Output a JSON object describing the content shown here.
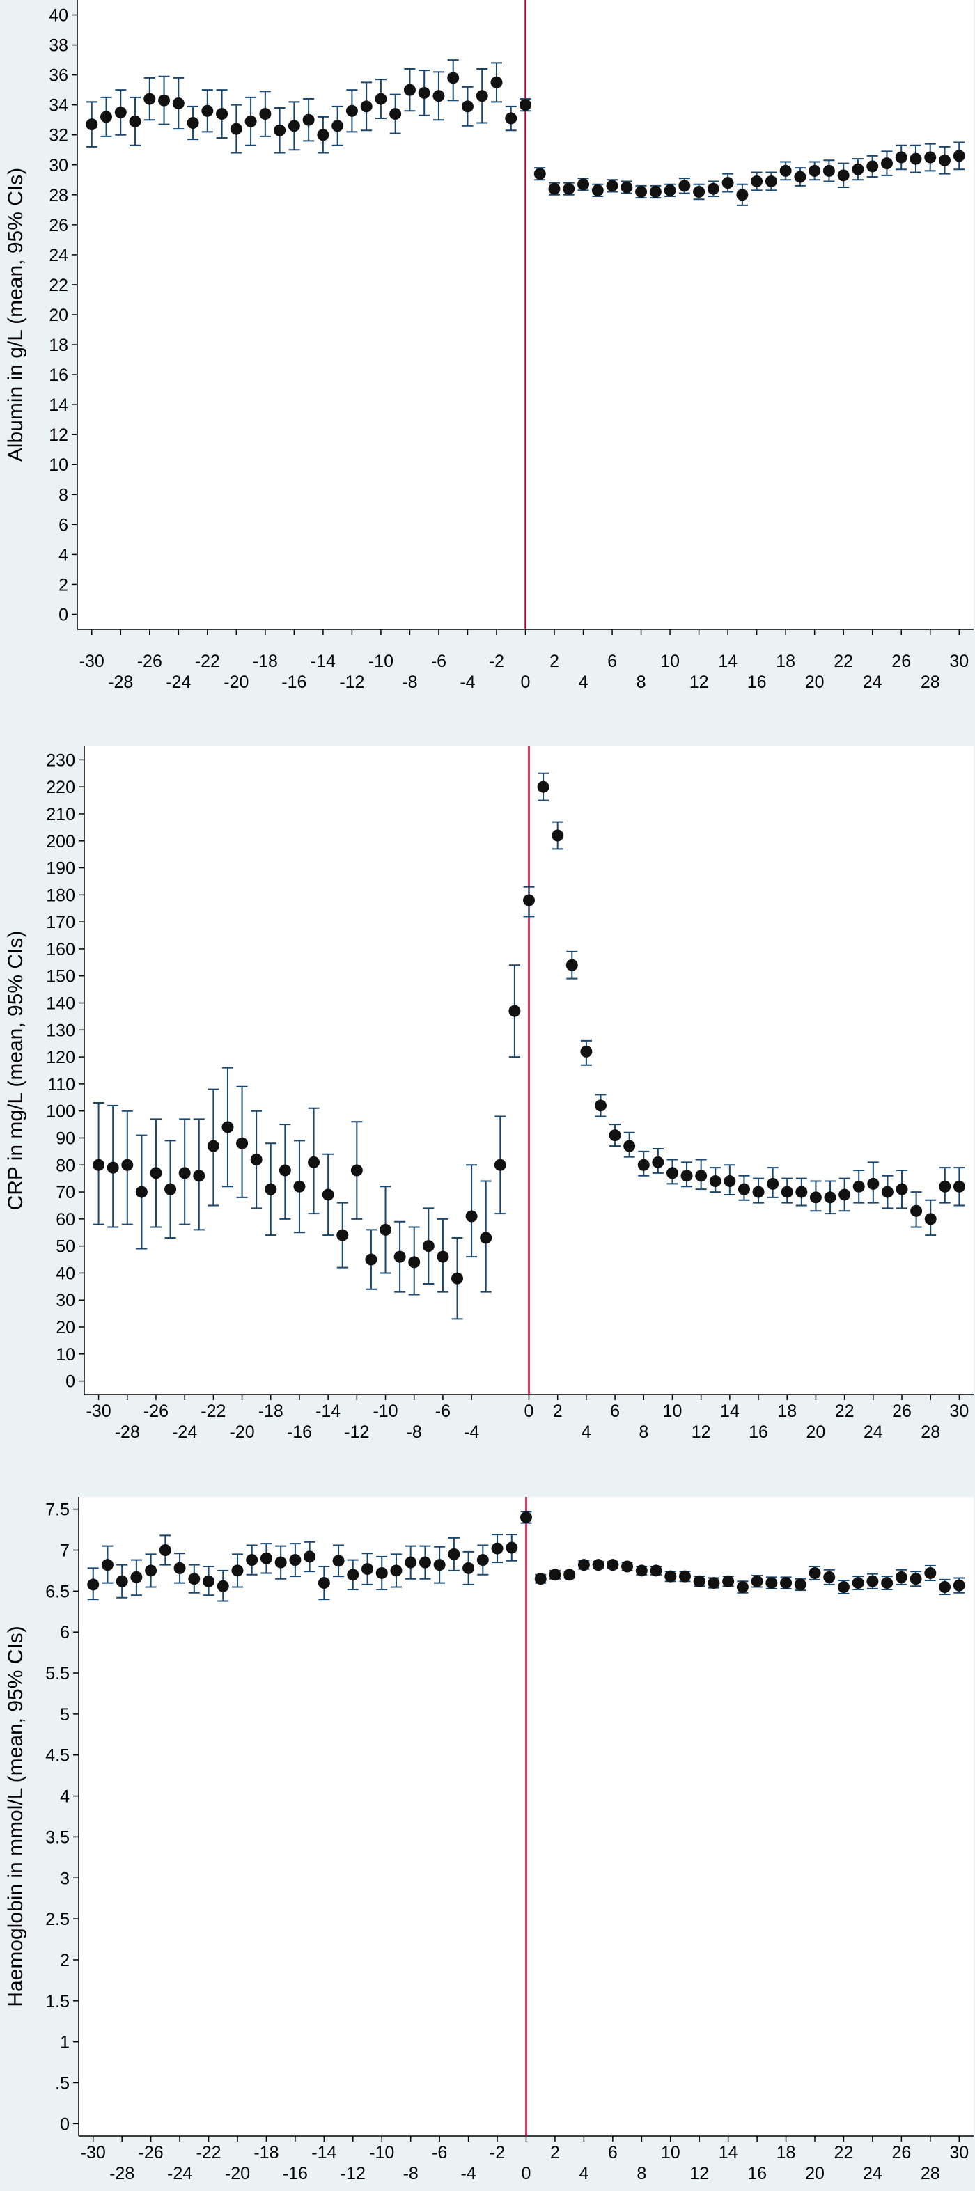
{
  "colors": {
    "background": "#eaf2f3",
    "plot_background": "#ffffff",
    "marker": "#111111",
    "error_bar": "#1a476f",
    "reference_line": "#c10534"
  },
  "chart_data": [
    {
      "type": "scatter",
      "ylabel": "Albumin in g/L (mean, 95% CIs)",
      "xlabel": "",
      "reference_line_x": 0,
      "xlim": [
        -31,
        31
      ],
      "ylim": [
        -1,
        41
      ],
      "yticks": [
        "0",
        "2",
        "4",
        "6",
        "8",
        "10",
        "12",
        "14",
        "16",
        "18",
        "20",
        "22",
        "24",
        "26",
        "28",
        "30",
        "32",
        "34",
        "36",
        "38",
        "40"
      ],
      "xticks_upper": [
        "-30",
        "-26",
        "-22",
        "-18",
        "-14",
        "-10",
        "-6",
        "-2",
        "2",
        "6",
        "10",
        "14",
        "18",
        "22",
        "26",
        "30"
      ],
      "xticks_lower": [
        "-28",
        "-24",
        "-20",
        "-16",
        "-12",
        "-8",
        "-4",
        "0",
        "4",
        "8",
        "12",
        "16",
        "20",
        "24",
        "28"
      ],
      "series": [
        {
          "x": [
            -30,
            -29,
            -28,
            -27,
            -26,
            -25,
            -24,
            -23,
            -22,
            -21,
            -20,
            -19,
            -18,
            -17,
            -16,
            -15,
            -14,
            -13,
            -12,
            -11,
            -10,
            -9,
            -8,
            -7,
            -6,
            -5,
            -4,
            -3,
            -2,
            -1,
            0,
            1,
            2,
            3,
            4,
            5,
            6,
            7,
            8,
            9,
            10,
            11,
            12,
            13,
            14,
            15,
            16,
            17,
            18,
            19,
            20,
            21,
            22,
            23,
            24,
            25,
            26,
            27,
            28,
            29,
            30
          ],
          "y": [
            32.7,
            33.2,
            33.5,
            32.9,
            34.4,
            34.3,
            34.1,
            32.8,
            33.6,
            33.4,
            32.4,
            32.9,
            33.4,
            32.3,
            32.6,
            33.0,
            32.0,
            32.6,
            33.6,
            33.9,
            34.4,
            33.4,
            35.0,
            34.8,
            34.6,
            35.8,
            33.9,
            34.6,
            35.5,
            33.1,
            34.0,
            29.4,
            28.4,
            28.4,
            28.7,
            28.3,
            28.6,
            28.5,
            28.2,
            28.2,
            28.3,
            28.6,
            28.2,
            28.4,
            28.8,
            28.0,
            28.9,
            28.9,
            29.6,
            29.2,
            29.6,
            29.6,
            29.3,
            29.7,
            29.9,
            30.1,
            30.5,
            30.4,
            30.5,
            30.3,
            30.6
          ],
          "lower": [
            31.2,
            31.9,
            32.0,
            31.3,
            33.0,
            32.7,
            32.4,
            31.7,
            32.2,
            31.8,
            30.8,
            31.3,
            31.9,
            30.8,
            31.0,
            31.6,
            30.8,
            31.3,
            32.2,
            32.3,
            33.1,
            32.1,
            33.6,
            33.3,
            33.0,
            34.3,
            32.6,
            32.8,
            34.2,
            32.3,
            33.6,
            29.0,
            28.0,
            28.0,
            28.3,
            27.9,
            28.2,
            28.1,
            27.8,
            27.8,
            27.9,
            28.1,
            27.7,
            27.9,
            28.2,
            27.3,
            28.3,
            28.3,
            29.0,
            28.6,
            29.0,
            28.9,
            28.5,
            29.0,
            29.2,
            29.3,
            29.7,
            29.5,
            29.6,
            29.4,
            29.7
          ],
          "upper": [
            34.2,
            34.5,
            35.0,
            34.5,
            35.8,
            35.9,
            35.8,
            33.9,
            35.0,
            35.0,
            34.0,
            34.5,
            34.9,
            33.8,
            34.2,
            34.4,
            33.2,
            33.9,
            35.0,
            35.5,
            35.7,
            34.7,
            36.4,
            36.3,
            36.2,
            37.0,
            35.2,
            36.4,
            36.8,
            33.9,
            34.4,
            29.8,
            28.8,
            28.8,
            29.1,
            28.7,
            29.0,
            28.9,
            28.6,
            28.6,
            28.7,
            29.1,
            28.7,
            28.9,
            29.4,
            28.7,
            29.5,
            29.5,
            30.2,
            29.8,
            30.2,
            30.3,
            30.1,
            30.4,
            30.6,
            30.9,
            31.3,
            31.3,
            31.4,
            31.2,
            31.5
          ]
        }
      ]
    },
    {
      "type": "scatter",
      "ylabel": "CRP in mg/L (mean, 95% CIs)",
      "xlabel": "",
      "reference_line_x": 0,
      "xlim": [
        -31,
        31
      ],
      "ylim": [
        -5,
        235
      ],
      "yticks": [
        "0",
        "10",
        "20",
        "30",
        "40",
        "50",
        "60",
        "70",
        "80",
        "90",
        "100",
        "110",
        "120",
        "130",
        "140",
        "150",
        "160",
        "170",
        "180",
        "190",
        "200",
        "210",
        "220",
        "230"
      ],
      "xticks_upper": [
        "-30",
        "-26",
        "-22",
        "-18",
        "-14",
        "-10",
        "-6",
        "0",
        "2",
        "6",
        "10",
        "14",
        "18",
        "22",
        "26",
        "30"
      ],
      "xticks_lower": [
        "-28",
        "-24",
        "-20",
        "-16",
        "-12",
        "-8",
        "-4",
        "4",
        "8",
        "12",
        "16",
        "20",
        "24",
        "28"
      ],
      "series": [
        {
          "x": [
            -30,
            -29,
            -28,
            -27,
            -26,
            -25,
            -24,
            -23,
            -22,
            -21,
            -20,
            -19,
            -18,
            -17,
            -16,
            -15,
            -14,
            -13,
            -12,
            -11,
            -10,
            -9,
            -8,
            -7,
            -6,
            -5,
            -4,
            -3,
            -2,
            -1,
            0,
            1,
            2,
            3,
            4,
            5,
            6,
            7,
            8,
            9,
            10,
            11,
            12,
            13,
            14,
            15,
            16,
            17,
            18,
            19,
            20,
            21,
            22,
            23,
            24,
            25,
            26,
            27,
            28,
            29,
            30
          ],
          "y": [
            80,
            79,
            80,
            70,
            77,
            71,
            77,
            76,
            87,
            94,
            88,
            82,
            71,
            78,
            72,
            81,
            69,
            54,
            78,
            45,
            56,
            46,
            44,
            50,
            46,
            38,
            61,
            53,
            80,
            137,
            178,
            220,
            202,
            154,
            122,
            102,
            91,
            87,
            80,
            81,
            77,
            76,
            76,
            74,
            74,
            71,
            70,
            73,
            70,
            70,
            68,
            68,
            69,
            72,
            73,
            70,
            71,
            63,
            60,
            72,
            72
          ],
          "lower": [
            58,
            57,
            58,
            49,
            57,
            53,
            58,
            56,
            65,
            72,
            68,
            64,
            54,
            60,
            55,
            62,
            54,
            42,
            60,
            34,
            40,
            33,
            32,
            36,
            33,
            23,
            46,
            33,
            62,
            120,
            172,
            215,
            197,
            149,
            117,
            98,
            87,
            83,
            76,
            77,
            73,
            72,
            71,
            70,
            69,
            67,
            66,
            68,
            66,
            65,
            63,
            62,
            63,
            66,
            66,
            64,
            64,
            57,
            54,
            66,
            65
          ],
          "upper": [
            103,
            102,
            100,
            91,
            97,
            89,
            97,
            97,
            108,
            116,
            109,
            100,
            88,
            95,
            89,
            101,
            84,
            66,
            96,
            56,
            72,
            59,
            57,
            64,
            60,
            53,
            80,
            74,
            98,
            154,
            183,
            225,
            207,
            159,
            126,
            106,
            95,
            92,
            85,
            86,
            82,
            81,
            82,
            79,
            80,
            76,
            75,
            79,
            75,
            75,
            74,
            74,
            75,
            78,
            81,
            76,
            78,
            70,
            67,
            79,
            79
          ]
        }
      ]
    },
    {
      "type": "scatter",
      "ylabel": "Haemoglobin in mmol/L (mean, 95% CIs)",
      "xlabel": "",
      "reference_line_x": 0,
      "xlim": [
        -31,
        31
      ],
      "ylim": [
        -0.15,
        7.65
      ],
      "yticks": [
        "0",
        ".5",
        "1",
        "1.5",
        "2",
        "2.5",
        "3",
        "3.5",
        "4",
        "4.5",
        "5",
        "5.5",
        "6",
        "6.5",
        "7",
        "7.5"
      ],
      "xticks_upper": [
        "-30",
        "-26",
        "-22",
        "-18",
        "-14",
        "-10",
        "-6",
        "-2",
        "2",
        "6",
        "10",
        "14",
        "18",
        "22",
        "26",
        "30"
      ],
      "xticks_lower": [
        "-28",
        "-24",
        "-20",
        "-16",
        "-12",
        "-8",
        "-4",
        "0",
        "4",
        "8",
        "12",
        "16",
        "20",
        "24",
        "28"
      ],
      "series": [
        {
          "x": [
            -30,
            -29,
            -28,
            -27,
            -26,
            -25,
            -24,
            -23,
            -22,
            -21,
            -20,
            -19,
            -18,
            -17,
            -16,
            -15,
            -14,
            -13,
            -12,
            -11,
            -10,
            -9,
            -8,
            -7,
            -6,
            -5,
            -4,
            -3,
            -2,
            -1,
            0,
            1,
            2,
            3,
            4,
            5,
            6,
            7,
            8,
            9,
            10,
            11,
            12,
            13,
            14,
            15,
            16,
            17,
            18,
            19,
            20,
            21,
            22,
            23,
            24,
            25,
            26,
            27,
            28,
            29,
            30
          ],
          "y": [
            6.58,
            6.82,
            6.62,
            6.67,
            6.75,
            7.0,
            6.78,
            6.65,
            6.62,
            6.56,
            6.75,
            6.88,
            6.9,
            6.85,
            6.88,
            6.92,
            6.6,
            6.87,
            6.7,
            6.77,
            6.72,
            6.75,
            6.85,
            6.85,
            6.82,
            6.95,
            6.78,
            6.88,
            7.02,
            7.03,
            7.4,
            6.65,
            6.7,
            6.7,
            6.82,
            6.82,
            6.82,
            6.8,
            6.75,
            6.75,
            6.68,
            6.68,
            6.62,
            6.6,
            6.62,
            6.55,
            6.62,
            6.6,
            6.6,
            6.58,
            6.72,
            6.67,
            6.55,
            6.6,
            6.62,
            6.6,
            6.67,
            6.65,
            6.72,
            6.55,
            6.57
          ],
          "lower": [
            6.4,
            6.6,
            6.42,
            6.45,
            6.55,
            6.82,
            6.6,
            6.48,
            6.45,
            6.38,
            6.55,
            6.7,
            6.72,
            6.65,
            6.68,
            6.74,
            6.4,
            6.68,
            6.52,
            6.58,
            6.52,
            6.55,
            6.65,
            6.65,
            6.6,
            6.75,
            6.58,
            6.7,
            6.85,
            6.87,
            7.33,
            6.6,
            6.65,
            6.66,
            6.77,
            6.78,
            6.78,
            6.75,
            6.7,
            6.7,
            6.62,
            6.62,
            6.56,
            6.54,
            6.56,
            6.48,
            6.55,
            6.53,
            6.53,
            6.51,
            6.64,
            6.58,
            6.47,
            6.52,
            6.53,
            6.52,
            6.58,
            6.56,
            6.63,
            6.46,
            6.48
          ],
          "upper": [
            6.78,
            7.05,
            6.82,
            6.88,
            6.95,
            7.18,
            6.96,
            6.82,
            6.8,
            6.75,
            6.95,
            7.06,
            7.08,
            7.05,
            7.08,
            7.1,
            6.8,
            7.06,
            6.88,
            6.96,
            6.92,
            6.95,
            7.05,
            7.05,
            7.04,
            7.15,
            6.98,
            7.06,
            7.19,
            7.19,
            7.47,
            6.7,
            6.75,
            6.74,
            6.87,
            6.86,
            6.86,
            6.85,
            6.8,
            6.8,
            6.74,
            6.74,
            6.68,
            6.66,
            6.68,
            6.62,
            6.69,
            6.67,
            6.67,
            6.65,
            6.8,
            6.76,
            6.63,
            6.68,
            6.71,
            6.68,
            6.76,
            6.74,
            6.81,
            6.64,
            6.66
          ]
        }
      ]
    }
  ]
}
